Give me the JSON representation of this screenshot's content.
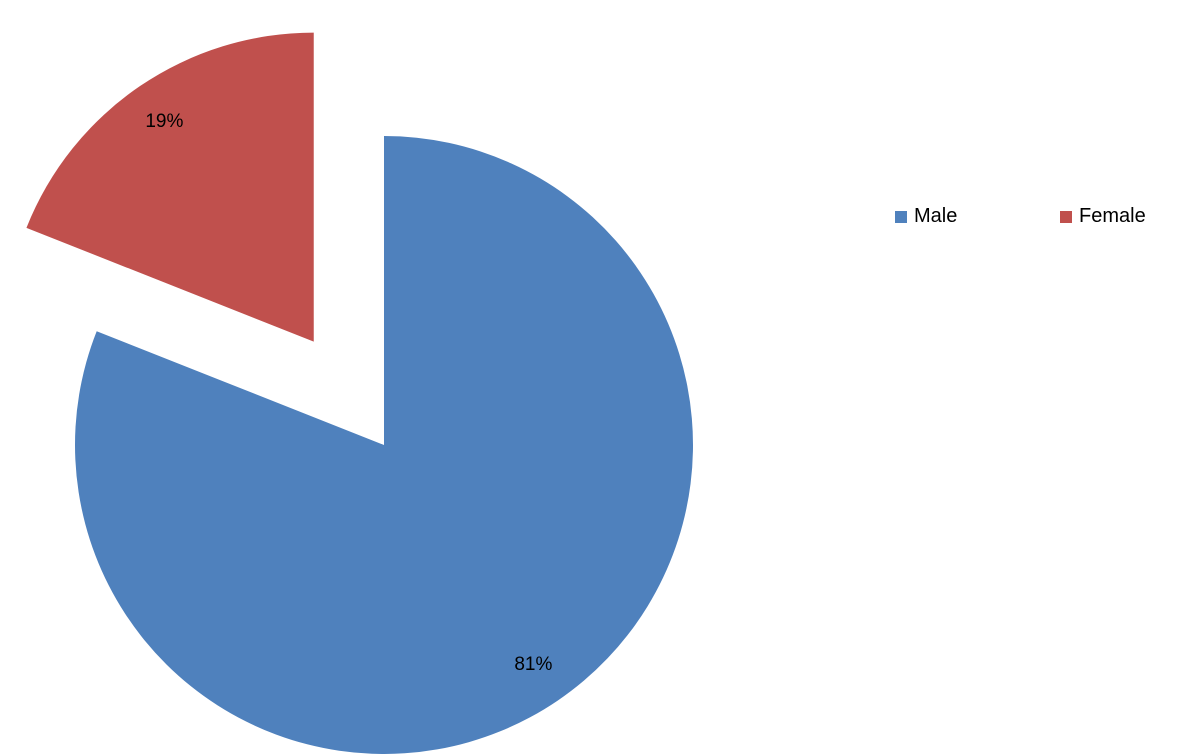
{
  "chart_data": {
    "type": "pie",
    "title": "",
    "slices": [
      {
        "name": "Male",
        "value": 81,
        "label": "81%",
        "color": "#4F81BD",
        "exploded": false
      },
      {
        "name": "Female",
        "value": 19,
        "label": "19%",
        "color": "#C0504D",
        "exploded": true
      }
    ],
    "start_angle": "12 o'clock, clockwise",
    "legend_position": "top-right",
    "data_labels": "percent"
  },
  "legend": {
    "items": [
      {
        "label": "Male",
        "color": "#4F81BD"
      },
      {
        "label": "Female",
        "color": "#C0504D"
      }
    ]
  }
}
